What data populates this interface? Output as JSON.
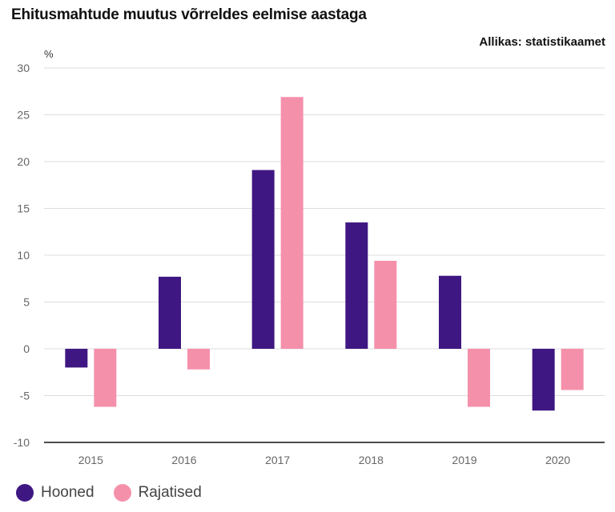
{
  "chart_data": {
    "type": "bar",
    "title": "Ehitusmahtude muutus võrreldes eelmise aastaga",
    "source": "Allikas: statistikaamet",
    "ylabel": "%",
    "categories": [
      "2015",
      "2016",
      "2017",
      "2018",
      "2019",
      "2020"
    ],
    "ylim": [
      -10,
      30
    ],
    "yticks": [
      30,
      25,
      20,
      15,
      10,
      5,
      0,
      -5,
      -10
    ],
    "grid": true,
    "legend_position": "bottom-left",
    "series": [
      {
        "name": "Hooned",
        "color": "#3f1782",
        "values": [
          -2.0,
          7.7,
          19.1,
          13.5,
          7.8,
          -6.6
        ]
      },
      {
        "name": "Rajatised",
        "color": "#f590ab",
        "values": [
          -6.2,
          -2.2,
          26.9,
          9.4,
          -6.2,
          -4.4
        ]
      }
    ]
  }
}
